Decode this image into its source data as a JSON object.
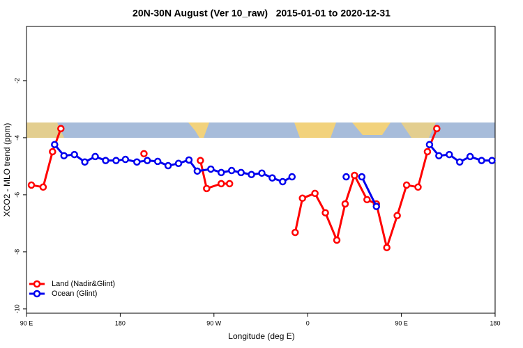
{
  "chart_data": {
    "type": "line",
    "title": "20N-30N August (Ver 10_raw)   2015-01-01 to 2020-12-31",
    "xlabel": "Longitude (deg E)",
    "ylabel": "XCO2 - MLO trend (ppm)",
    "xlim": [
      90,
      540
    ],
    "ylim": [
      -10.15,
      -0.1
    ],
    "xticks": [
      {
        "value": 90,
        "label": "90 E"
      },
      180,
      {
        "value": 270,
        "label": "90 W"
      },
      {
        "value": 360,
        "label": "0"
      },
      {
        "value": 450,
        "label": "90 E"
      },
      {
        "value": 540,
        "label": "180"
      }
    ],
    "yticks": [
      -2,
      -4,
      -6,
      -8,
      -10
    ],
    "legend": "bottom-left",
    "series": [
      {
        "name": "Land (Nadir&Glint)",
        "color": "#ff0000",
        "x": [
          94.7,
          106,
          115,
          123,
          null,
          202.8,
          null,
          257,
          263,
          277,
          285,
          null,
          348,
          355,
          367,
          377,
          388,
          396,
          405,
          417,
          426,
          436,
          446,
          455,
          466,
          475,
          484
        ],
        "values": [
          -5.66,
          -5.73,
          -4.49,
          -3.68,
          null,
          -4.56,
          null,
          -4.8,
          -5.78,
          -5.61,
          -5.61,
          null,
          -7.32,
          -6.12,
          -5.95,
          -6.63,
          -7.59,
          -6.32,
          -5.32,
          -6.17,
          -6.32,
          -7.85,
          -6.73,
          -5.66,
          -5.73,
          -4.49,
          -3.68
        ]
      },
      {
        "name": "Ocean (Glint)",
        "color": "#0000ee",
        "x": [
          117,
          126,
          136,
          146,
          156,
          166,
          176,
          185,
          196,
          206,
          216,
          226,
          236,
          246,
          254,
          267,
          277,
          287,
          296,
          306,
          316,
          326,
          336,
          345,
          null,
          397,
          null,
          412,
          426,
          null,
          477,
          486,
          496,
          506,
          516,
          527,
          537
        ],
        "values": [
          -4.24,
          -4.63,
          -4.59,
          -4.85,
          -4.66,
          -4.8,
          -4.8,
          -4.76,
          -4.85,
          -4.8,
          -4.83,
          -4.98,
          -4.9,
          -4.78,
          -5.17,
          -5.1,
          -5.22,
          -5.15,
          -5.22,
          -5.29,
          -5.24,
          -5.41,
          -5.54,
          -5.37,
          null,
          -5.37,
          null,
          -5.37,
          -6.41,
          null,
          -4.24,
          -4.63,
          -4.59,
          -4.85,
          -4.66,
          -4.8,
          -4.8
        ]
      }
    ]
  }
}
